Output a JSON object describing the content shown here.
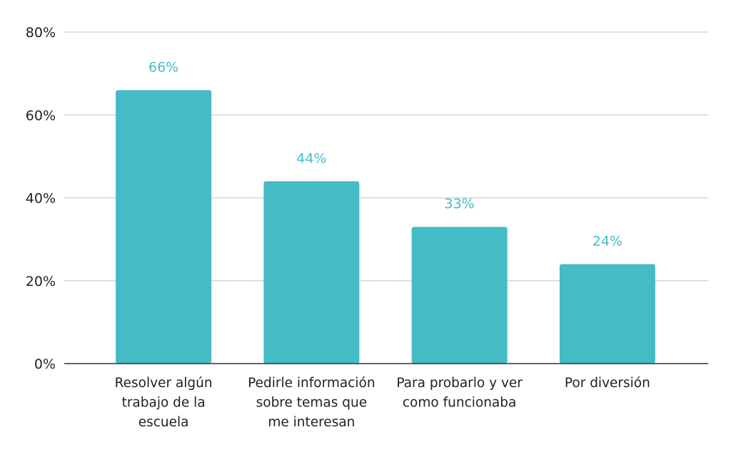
{
  "chart_data": {
    "type": "bar",
    "title": "",
    "xlabel": "",
    "ylabel": "",
    "categories": [
      "Resolver algún trabajo de la escuela",
      "Pedirle información sobre temas que me interesan",
      "Para probarlo y ver como funcionaba",
      "Por diversión"
    ],
    "category_lines": [
      [
        "Resolver algún",
        "trabajo de la",
        "escuela"
      ],
      [
        "Pedirle información",
        "sobre temas que",
        "me interesan"
      ],
      [
        "Para probarlo y ver",
        "como funcionaba"
      ],
      [
        "Por diversión"
      ]
    ],
    "values": [
      66,
      44,
      33,
      24
    ],
    "data_labels": [
      "66%",
      "44%",
      "33%",
      "24%"
    ],
    "ylim": [
      0,
      80
    ],
    "y_ticks": [
      0,
      20,
      40,
      60,
      80
    ],
    "y_tick_labels": [
      "0%",
      "20%",
      "40%",
      "60%",
      "80%"
    ],
    "grid": true,
    "legend": "none",
    "bar_color": "#45BBC5",
    "label_color": "#45BBC5"
  }
}
